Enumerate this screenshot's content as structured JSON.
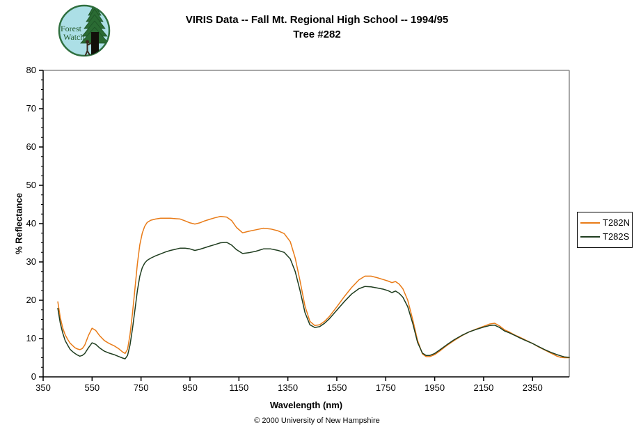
{
  "logo": {
    "line1": "Forest",
    "line2": "Watch"
  },
  "title": {
    "line1": "VIRIS Data -- Fall Mt. Regional High School -- 1994/95",
    "line2": "Tree #282"
  },
  "footer": {
    "copyright": "© 2000 University of New Hampshire"
  },
  "legend": {
    "items": [
      {
        "label": "T282N",
        "color": "#E97B17"
      },
      {
        "label": "T282S",
        "color": "#1F3D1F"
      }
    ]
  },
  "colors": {
    "axis": "#000000",
    "plot_border_gray": "#8C8C8C",
    "background": "#FFFFFF",
    "logo_bg": "#ACDFE6",
    "logo_green": "#2F6F3F",
    "logo_text_green": "#235B2D"
  },
  "chart_data": {
    "type": "line",
    "title": "VIRIS Data -- Fall Mt. Regional High School -- 1994/95 Tree #282",
    "xlabel": "Wavelength (nm)",
    "ylabel": "% Reflectance",
    "xlim": [
      350,
      2500
    ],
    "ylim": [
      0,
      80
    ],
    "x_ticks": [
      350,
      550,
      750,
      950,
      1150,
      1350,
      1550,
      1750,
      1950,
      2150,
      2350
    ],
    "y_ticks": [
      0,
      10,
      20,
      30,
      40,
      50,
      60,
      70,
      80
    ],
    "y_minor_step": 2.5,
    "grid": false,
    "legend_position": "right",
    "x": [
      410,
      420,
      430,
      440,
      450,
      460,
      470,
      480,
      490,
      500,
      510,
      520,
      535,
      550,
      565,
      580,
      600,
      620,
      640,
      660,
      675,
      685,
      695,
      705,
      715,
      725,
      735,
      745,
      755,
      765,
      775,
      790,
      810,
      830,
      850,
      870,
      890,
      910,
      930,
      950,
      970,
      990,
      1010,
      1030,
      1050,
      1075,
      1100,
      1120,
      1140,
      1165,
      1190,
      1220,
      1250,
      1280,
      1310,
      1335,
      1360,
      1380,
      1400,
      1420,
      1440,
      1460,
      1480,
      1500,
      1520,
      1550,
      1580,
      1610,
      1640,
      1665,
      1690,
      1715,
      1740,
      1760,
      1775,
      1790,
      1805,
      1820,
      1840,
      1860,
      1880,
      1900,
      1915,
      1930,
      1950,
      1970,
      2000,
      2030,
      2060,
      2090,
      2120,
      2150,
      2175,
      2195,
      2215,
      2235,
      2255,
      2275,
      2300,
      2325,
      2350,
      2375,
      2400,
      2425,
      2450,
      2465,
      2480,
      2500
    ],
    "series": [
      {
        "name": "T282N",
        "color": "#E97B17",
        "values": [
          19.6,
          15.5,
          12.8,
          11.0,
          9.8,
          8.8,
          8.2,
          7.6,
          7.3,
          7.1,
          7.4,
          8.3,
          10.8,
          12.7,
          12.1,
          10.8,
          9.5,
          8.7,
          8.1,
          7.3,
          6.5,
          6.1,
          7.2,
          11.0,
          16.5,
          23.0,
          29.5,
          34.5,
          37.5,
          39.3,
          40.3,
          40.9,
          41.2,
          41.4,
          41.4,
          41.4,
          41.3,
          41.2,
          40.7,
          40.2,
          39.9,
          40.2,
          40.7,
          41.1,
          41.5,
          41.9,
          41.7,
          40.8,
          39.0,
          37.6,
          38.0,
          38.4,
          38.8,
          38.6,
          38.1,
          37.4,
          35.3,
          31.0,
          25.0,
          18.5,
          14.5,
          13.4,
          13.6,
          14.5,
          15.8,
          18.3,
          20.9,
          23.3,
          25.3,
          26.3,
          26.3,
          25.9,
          25.4,
          25.0,
          24.6,
          24.9,
          24.2,
          23.0,
          20.0,
          15.0,
          9.5,
          6.0,
          5.3,
          5.3,
          5.8,
          6.7,
          8.2,
          9.5,
          10.7,
          11.7,
          12.5,
          13.2,
          13.8,
          14.0,
          13.3,
          12.3,
          11.7,
          11.0,
          10.3,
          9.5,
          8.7,
          7.8,
          7.0,
          6.2,
          5.4,
          5.1,
          5.0,
          5.0
        ]
      },
      {
        "name": "T282S",
        "color": "#1F3D1F",
        "values": [
          17.9,
          14.0,
          11.5,
          9.5,
          8.3,
          7.2,
          6.6,
          6.1,
          5.7,
          5.4,
          5.6,
          6.1,
          7.6,
          8.9,
          8.5,
          7.6,
          6.7,
          6.2,
          5.8,
          5.3,
          4.9,
          4.7,
          5.6,
          8.3,
          12.5,
          17.5,
          22.5,
          26.3,
          28.5,
          29.7,
          30.4,
          31.0,
          31.6,
          32.1,
          32.6,
          33.0,
          33.3,
          33.6,
          33.6,
          33.4,
          33.0,
          33.3,
          33.7,
          34.1,
          34.5,
          35.0,
          35.1,
          34.4,
          33.2,
          32.2,
          32.4,
          32.8,
          33.4,
          33.4,
          33.0,
          32.5,
          30.8,
          27.5,
          22.5,
          16.8,
          13.6,
          12.9,
          13.1,
          14.0,
          15.2,
          17.4,
          19.6,
          21.6,
          23.0,
          23.6,
          23.5,
          23.2,
          22.9,
          22.5,
          22.0,
          22.4,
          21.8,
          20.8,
          18.3,
          14.0,
          9.0,
          6.2,
          5.6,
          5.6,
          6.1,
          7.0,
          8.4,
          9.7,
          10.8,
          11.7,
          12.4,
          13.0,
          13.4,
          13.5,
          12.9,
          12.0,
          11.5,
          10.9,
          10.1,
          9.4,
          8.7,
          7.9,
          7.1,
          6.4,
          5.8,
          5.5,
          5.2,
          5.1
        ]
      }
    ]
  }
}
